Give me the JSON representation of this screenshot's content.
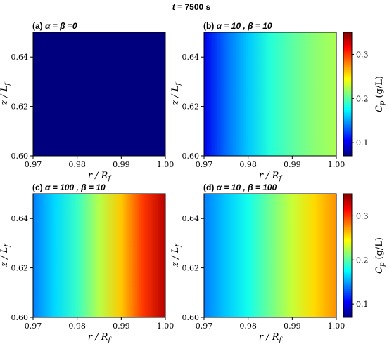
{
  "figure": {
    "supertitle_var": "t",
    "supertitle_rest": " = 7500 s"
  },
  "colors": {
    "jet": [
      "#00007f",
      "#0000ff",
      "#007fff",
      "#00ffff",
      "#7fff7f",
      "#ffff00",
      "#ff7f00",
      "#ff0000",
      "#7f0000"
    ]
  },
  "chart_data": [
    {
      "type": "heatmap",
      "panel": "a",
      "title_prefix": "(a) ",
      "title_params": "α = β =0",
      "xlabel": "r / R_f",
      "ylabel": "z / L_f",
      "xlim": [
        0.97,
        1.0
      ],
      "ylim": [
        0.6,
        0.65
      ],
      "x_ticks": [
        "0.97",
        "0.98",
        "0.99",
        "1.00"
      ],
      "y_ticks": [
        "0.60",
        "0.62",
        "0.64"
      ],
      "colorbar": false,
      "value_range": [
        0.07,
        0.35
      ],
      "profile": {
        "x": [
          0.97,
          1.0
        ],
        "c": [
          0.07,
          0.07
        ]
      }
    },
    {
      "type": "heatmap",
      "panel": "b",
      "title_prefix": "(b) ",
      "title_params": "α = 10 ,  β = 10",
      "xlabel": "r / R_f",
      "ylabel": "z / L_f",
      "xlim": [
        0.97,
        1.0
      ],
      "ylim": [
        0.6,
        0.65
      ],
      "x_ticks": [
        "0.97",
        "0.98",
        "0.99",
        "1.00"
      ],
      "y_ticks": [
        "0.60",
        "0.62",
        "0.64"
      ],
      "colorbar": true,
      "colorbar_label": "C_p (g/L)",
      "colorbar_ticks": [
        "0.1",
        "0.2",
        "0.3"
      ],
      "value_range": [
        0.07,
        0.35
      ],
      "profile": {
        "x": [
          0.97,
          0.975,
          0.98,
          0.985,
          0.99,
          0.995,
          1.0
        ],
        "c": [
          0.1,
          0.135,
          0.16,
          0.185,
          0.2,
          0.213,
          0.222
        ]
      }
    },
    {
      "type": "heatmap",
      "panel": "c",
      "title_prefix": "(c) ",
      "title_params": "α = 100 ,  β = 10",
      "xlabel": "r / R_f",
      "ylabel": "z / L_f",
      "xlim": [
        0.97,
        1.0
      ],
      "ylim": [
        0.6,
        0.65
      ],
      "x_ticks": [
        "0.97",
        "0.98",
        "0.99",
        "1.00"
      ],
      "y_ticks": [
        "0.60",
        "0.62",
        "0.64"
      ],
      "colorbar": false,
      "value_range": [
        0.07,
        0.35
      ],
      "profile": {
        "x": [
          0.97,
          0.975,
          0.98,
          0.985,
          0.99,
          0.995,
          1.0
        ],
        "c": [
          0.14,
          0.165,
          0.19,
          0.225,
          0.26,
          0.3,
          0.335
        ]
      }
    },
    {
      "type": "heatmap",
      "panel": "d",
      "title_prefix": "(d) ",
      "title_params": "α = 10 ,  β = 100",
      "xlabel": "r / R_f",
      "ylabel": "z / L_f",
      "xlim": [
        0.97,
        1.0
      ],
      "ylim": [
        0.6,
        0.65
      ],
      "x_ticks": [
        "0.97",
        "0.98",
        "0.99",
        "1.00"
      ],
      "y_ticks": [
        "0.60",
        "0.62",
        "0.64"
      ],
      "colorbar": true,
      "colorbar_label": "C_p (g/L)",
      "colorbar_ticks": [
        "0.1",
        "0.2",
        "0.3"
      ],
      "value_range": [
        0.07,
        0.35
      ],
      "profile": {
        "x": [
          0.97,
          0.975,
          0.98,
          0.985,
          0.99,
          0.995,
          1.0
        ],
        "c": [
          0.14,
          0.16,
          0.18,
          0.205,
          0.23,
          0.255,
          0.275
        ]
      }
    }
  ]
}
